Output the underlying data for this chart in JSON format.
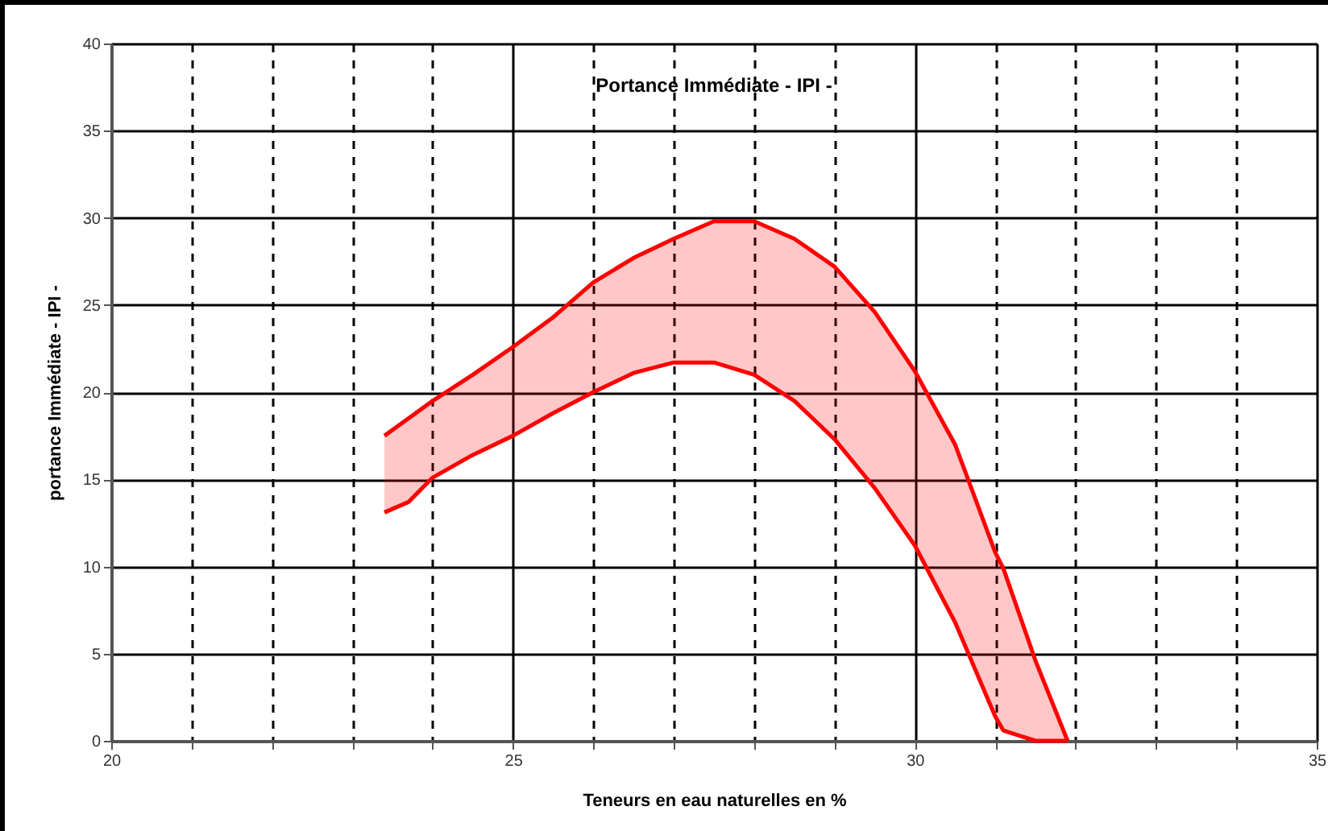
{
  "chart_data": {
    "type": "line",
    "title": "Portance Immédiate - IPI -",
    "xlabel": "Teneurs en eau naturelles en %",
    "ylabel": "portance Immédiate - IPI -",
    "x": [
      23.4,
      23.7,
      24.0,
      24.5,
      25.0,
      25.5,
      26.0,
      26.5,
      27.0,
      27.5,
      28.0,
      28.5,
      29.0,
      29.5,
      30.0,
      30.5,
      31.0,
      31.1,
      31.5,
      31.9
    ],
    "series": [
      {
        "color": "#ff0000",
        "values": [
          17.5,
          18.5,
          19.5,
          21.0,
          22.6,
          24.3,
          26.3,
          27.7,
          28.8,
          29.8,
          29.8,
          28.8,
          27.2,
          24.6,
          21.2,
          17.0,
          10.8,
          9.9,
          4.6,
          0
        ],
        "lower": [
          13.1,
          13.7,
          15.1,
          16.4,
          17.5,
          18.8,
          20.0,
          21.1,
          21.7,
          21.7,
          21.0,
          19.5,
          17.3,
          14.5,
          11.2,
          6.8,
          1.4,
          0.6,
          0,
          0
        ],
        "upper": [
          17.5,
          18.5,
          19.5,
          21.0,
          22.6,
          24.3,
          26.3,
          27.7,
          28.8,
          29.8,
          29.8,
          28.8,
          27.2,
          24.6,
          21.2,
          17.0,
          10.8,
          9.9,
          4.6,
          0
        ]
      },
      {
        "color": "#ff0000",
        "values": [
          13.1,
          13.7,
          15.1,
          16.4,
          17.5,
          18.8,
          20.0,
          21.1,
          21.7,
          21.7,
          21.0,
          19.5,
          17.3,
          14.5,
          11.2,
          6.8,
          1.4,
          0.6,
          0,
          0
        ]
      }
    ],
    "xlim": [
      20,
      35
    ],
    "xticks": [
      20,
      {
        "value": 21,
        "label": null
      },
      {
        "value": 22,
        "label": null
      },
      {
        "value": 23,
        "label": null
      },
      {
        "value": 24,
        "label": null
      },
      25,
      {
        "value": 26,
        "label": null
      },
      {
        "value": 27,
        "label": null
      },
      {
        "value": 28,
        "label": null
      },
      {
        "value": 29,
        "label": null
      },
      30,
      {
        "value": 31,
        "label": null
      },
      {
        "value": 32,
        "label": null
      },
      {
        "value": 33,
        "label": null
      },
      {
        "value": 34,
        "label": null
      },
      35
    ],
    "ylim": [
      0,
      40
    ],
    "yticks": [
      0,
      5,
      10,
      15,
      20,
      25,
      30,
      35,
      40
    ],
    "grid": true,
    "marker": "none",
    "line_style": "solid"
  }
}
